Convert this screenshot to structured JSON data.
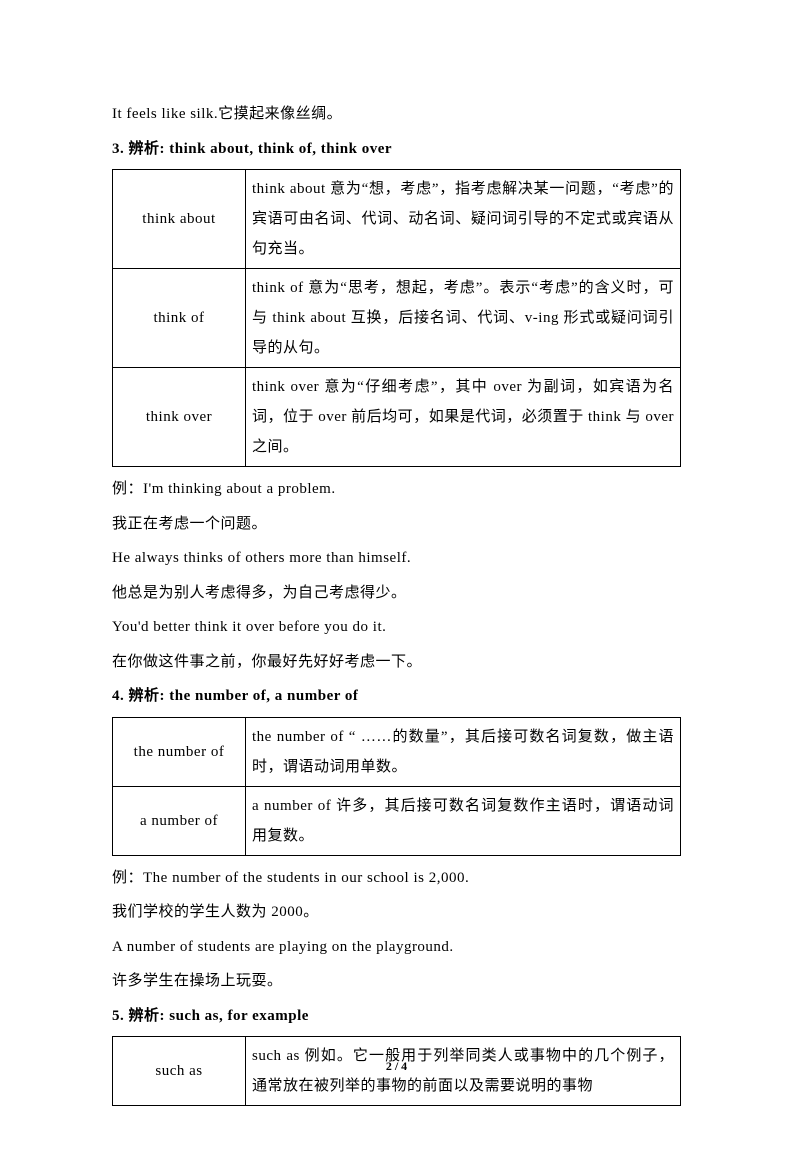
{
  "intro_line": "It feels like silk.它摸起来像丝绸。",
  "section3_title": "3. 辨析: think about, think of, think over",
  "table3": {
    "rows": [
      {
        "term": "think about",
        "def": "think about 意为“想，考虑”，指考虑解决某一问题，“考虑”的宾语可由名词、代词、动名词、疑问词引导的不定式或宾语从句充当。"
      },
      {
        "term": "think of",
        "def": "think of 意为“思考，想起，考虑”。表示“考虑”的含义时，可与 think about 互换，后接名词、代词、v-ing 形式或疑问词引导的从句。"
      },
      {
        "term": "think over",
        "def": "think over 意为“仔细考虑”，其中 over 为副词，如宾语为名词，位于 over 前后均可，如果是代词，必须置于 think 与 over 之间。"
      }
    ]
  },
  "examples3": [
    "例：I'm thinking about a problem.",
    "我正在考虑一个问题。",
    "He always thinks of others more than himself.",
    "他总是为别人考虑得多，为自己考虑得少。",
    "You'd better think it over before you do it.",
    "在你做这件事之前，你最好先好好考虑一下。"
  ],
  "section4_title": "4. 辨析: the number of, a number of",
  "table4": {
    "rows": [
      {
        "term": "the number of",
        "def": "the number of “ ……的数量”，其后接可数名词复数，做主语时，谓语动词用单数。"
      },
      {
        "term": "a number of",
        "def": "a number of 许多，其后接可数名词复数作主语时，谓语动词用复数。"
      }
    ]
  },
  "examples4": [
    "例：The number of the students in our school is 2,000.",
    "我们学校的学生人数为 2000。",
    "A number of students are playing on the playground.",
    "许多学生在操场上玩耍。"
  ],
  "section5_title": "5. 辨析: such as, for example",
  "table5": {
    "rows": [
      {
        "term": "such as",
        "def": "such as 例如。它一般用于列举同类人或事物中的几个例子，通常放在被列举的事物的前面以及需要说明的事物"
      }
    ]
  },
  "page_number": "2 / 4"
}
